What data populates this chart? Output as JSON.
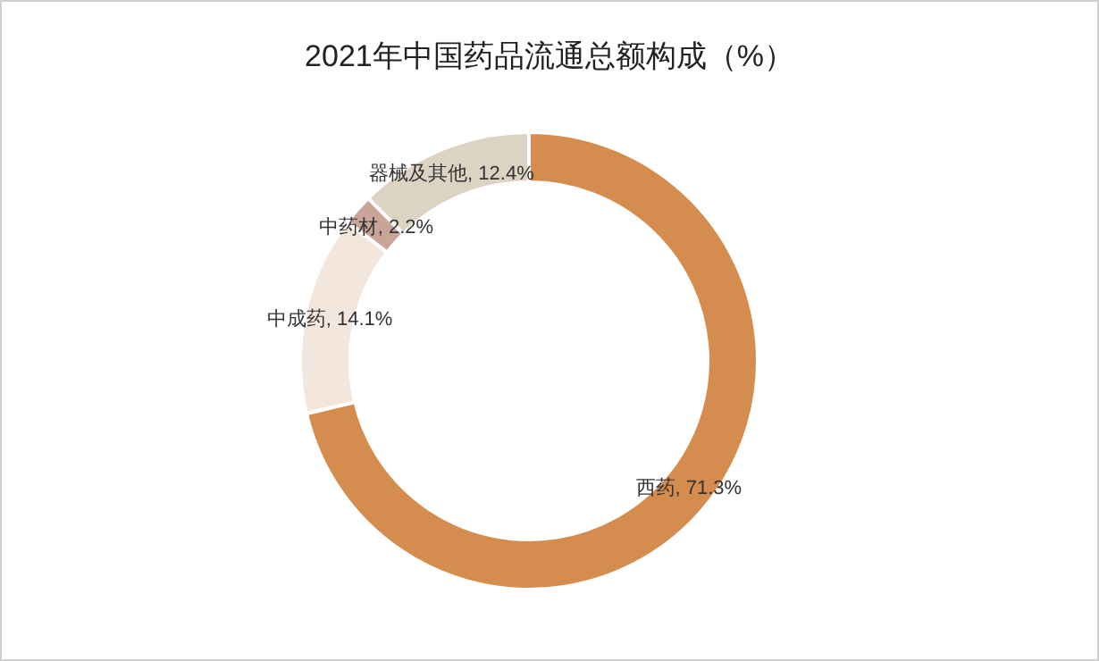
{
  "chart_data": {
    "type": "donut",
    "title": "2021年中国药品流通总额构成（%）",
    "categories": [
      "西药",
      "中成药",
      "中药材",
      "器械及其他"
    ],
    "values": [
      71.3,
      14.1,
      2.2,
      12.4
    ],
    "colors": [
      "#d48d4e",
      "#f3e6dd",
      "#c9a597",
      "#dcd3c3"
    ],
    "value_labels": [
      ", 71.3%",
      ", 14.1%",
      ", 2.2%",
      ", 12.4%"
    ]
  }
}
